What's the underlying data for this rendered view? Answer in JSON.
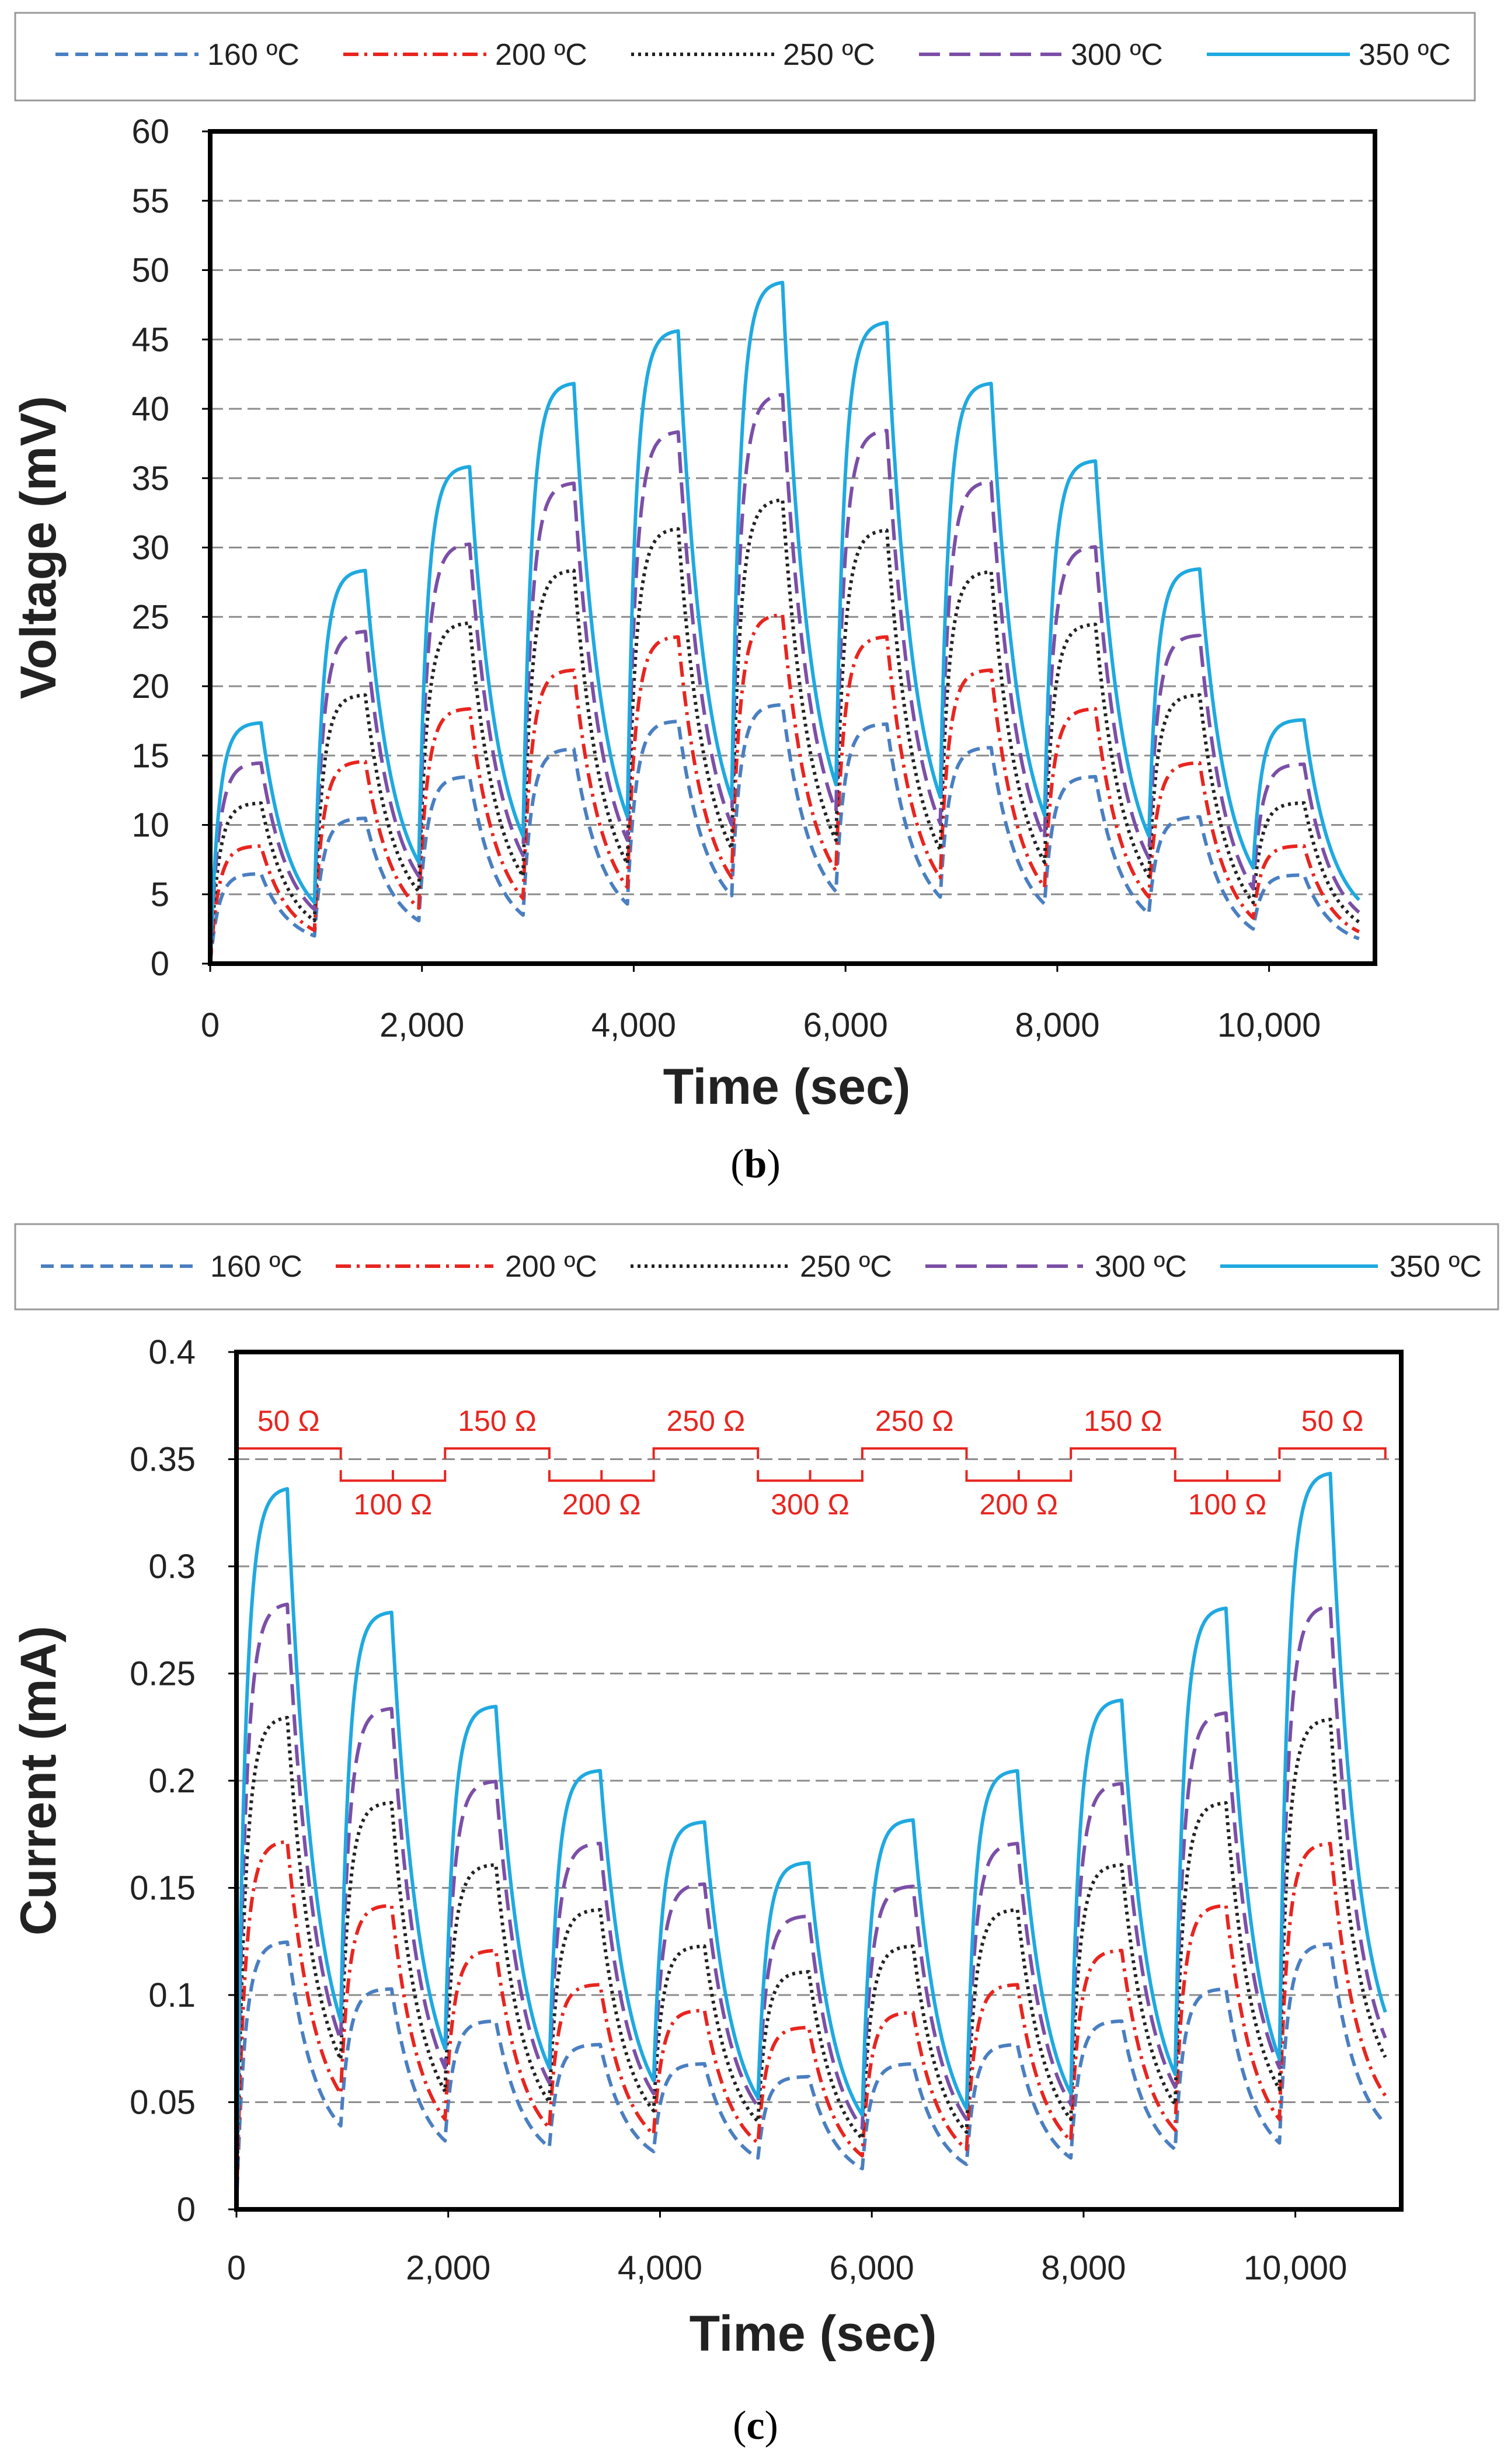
{
  "figure": {
    "panels": [
      {
        "label": "b",
        "caption_open": "(",
        "caption_close": ")"
      },
      {
        "label": "c",
        "caption_open": "(",
        "caption_close": ")"
      }
    ]
  },
  "chart_data": [
    {
      "type": "line",
      "panel": "b",
      "title": "",
      "xlabel": "Time (sec)",
      "ylabel": "Voltage (mV)",
      "xlim": [
        0,
        11000
      ],
      "ylim": [
        0,
        60
      ],
      "xticks": [
        0,
        2000,
        4000,
        6000,
        8000,
        10000
      ],
      "xtick_labels": [
        "0",
        "2,000",
        "4,000",
        "6,000",
        "8,000",
        "10,000"
      ],
      "yticks": [
        0,
        5,
        10,
        15,
        20,
        25,
        30,
        35,
        40,
        45,
        50,
        55,
        60
      ],
      "ytick_labels": [
        "0",
        "5",
        "10",
        "15",
        "20",
        "25",
        "30",
        "35",
        "40",
        "45",
        "50",
        "55",
        "60"
      ],
      "grid": true,
      "legend_position": "top",
      "segment_duration": 985,
      "segment_starts": [
        0,
        985,
        1970,
        2955,
        3940,
        4925,
        5910,
        6895,
        7880,
        8865,
        9850
      ],
      "end_time": 10850,
      "series": [
        {
          "name": "160 ºC",
          "color": "#4a7fc1",
          "dash": "dashed",
          "plateaus": [
            6.5,
            10.5,
            13.5,
            15.5,
            17.5,
            18.7,
            17.3,
            15.6,
            13.5,
            10.6,
            6.4
          ],
          "valleys": [
            2.0,
            3.1,
            3.5,
            4.3,
            4.9,
            5.2,
            4.8,
            4.3,
            3.6,
            2.5,
            1.8
          ]
        },
        {
          "name": "200 ºC",
          "color": "#e8251f",
          "dash": "dashdot",
          "plateaus": [
            8.5,
            14.6,
            18.4,
            21.2,
            23.6,
            25.2,
            23.6,
            21.2,
            18.4,
            14.5,
            8.5
          ],
          "valleys": [
            2.4,
            4.0,
            4.7,
            5.5,
            6.2,
            6.7,
            6.2,
            5.5,
            4.8,
            3.3,
            2.3
          ]
        },
        {
          "name": "250 ºC",
          "color": "#222222",
          "dash": "dotted",
          "plateaus": [
            11.6,
            19.4,
            24.6,
            28.4,
            31.4,
            33.5,
            31.3,
            28.3,
            24.5,
            19.4,
            11.6
          ],
          "valleys": [
            3.1,
            5.2,
            6.3,
            7.2,
            8.3,
            8.9,
            8.2,
            7.3,
            6.3,
            4.4,
            3.0
          ]
        },
        {
          "name": "300 ºC",
          "color": "#7b4fa6",
          "dash": "longdash",
          "plateaus": [
            14.5,
            24.0,
            30.3,
            34.7,
            38.4,
            41.1,
            38.5,
            34.8,
            30.1,
            23.7,
            14.4
          ],
          "valleys": [
            3.9,
            6.3,
            7.8,
            8.9,
            10.0,
            11.0,
            10.1,
            9.0,
            7.6,
            5.4,
            3.7
          ]
        },
        {
          "name": "350 ºC",
          "color": "#1fa9e0",
          "dash": "solid",
          "plateaus": [
            17.4,
            28.4,
            35.9,
            41.9,
            45.7,
            49.2,
            46.3,
            41.9,
            36.3,
            28.5,
            17.6
          ],
          "valleys": [
            4.4,
            7.3,
            9.2,
            10.6,
            11.9,
            12.9,
            12.0,
            10.7,
            9.2,
            6.9,
            4.6
          ]
        }
      ]
    },
    {
      "type": "line",
      "panel": "c",
      "title": "",
      "xlabel": "Time (sec)",
      "ylabel": "Current (mA)",
      "xlim": [
        0,
        11000
      ],
      "ylim": [
        0,
        0.4
      ],
      "xticks": [
        0,
        2000,
        4000,
        6000,
        8000,
        10000
      ],
      "xtick_labels": [
        "0",
        "2,000",
        "4,000",
        "6,000",
        "8,000",
        "10,000"
      ],
      "yticks": [
        0,
        0.05,
        0.1,
        0.15,
        0.2,
        0.25,
        0.3,
        0.35,
        0.4
      ],
      "ytick_labels": [
        "0",
        "0.05",
        "0.1",
        "0.15",
        "0.2",
        "0.25",
        "0.3",
        "0.35",
        "0.4"
      ],
      "grid": true,
      "legend_position": "top",
      "segment_duration": 985,
      "segment_starts": [
        0,
        985,
        1970,
        2955,
        3940,
        4925,
        5910,
        6895,
        7880,
        8865,
        9850
      ],
      "end_time": 10850,
      "annotations": {
        "color": "#e8251f",
        "top_row_value": 0.355,
        "bottom_row_value": 0.34,
        "labels": [
          "50 Ω",
          "100 Ω",
          "150 Ω",
          "200 Ω",
          "250 Ω",
          "300 Ω",
          "250 Ω",
          "200 Ω",
          "150 Ω",
          "100 Ω",
          "50 Ω"
        ]
      },
      "series": [
        {
          "name": "160 ºC",
          "color": "#4a7fc1",
          "dash": "dashed",
          "plateaus": [
            0.125,
            0.103,
            0.088,
            0.077,
            0.068,
            0.062,
            0.068,
            0.077,
            0.088,
            0.103,
            0.124
          ],
          "valleys": [
            0.039,
            0.032,
            0.029,
            0.027,
            0.024,
            0.019,
            0.021,
            0.024,
            0.028,
            0.031,
            0.04
          ]
        },
        {
          "name": "200 ºC",
          "color": "#e8251f",
          "dash": "dashdot",
          "plateaus": [
            0.172,
            0.142,
            0.121,
            0.105,
            0.093,
            0.085,
            0.092,
            0.105,
            0.121,
            0.142,
            0.171
          ],
          "valleys": [
            0.054,
            0.042,
            0.038,
            0.035,
            0.031,
            0.025,
            0.028,
            0.032,
            0.037,
            0.042,
            0.053
          ]
        },
        {
          "name": "250 ºC",
          "color": "#222222",
          "dash": "dotted",
          "plateaus": [
            0.23,
            0.19,
            0.161,
            0.14,
            0.123,
            0.111,
            0.123,
            0.14,
            0.161,
            0.19,
            0.229
          ],
          "valleys": [
            0.07,
            0.055,
            0.05,
            0.046,
            0.041,
            0.033,
            0.036,
            0.042,
            0.049,
            0.056,
            0.071
          ]
        },
        {
          "name": "300 ºC",
          "color": "#7b4fa6",
          "dash": "longdash",
          "plateaus": [
            0.283,
            0.234,
            0.2,
            0.171,
            0.152,
            0.137,
            0.151,
            0.171,
            0.199,
            0.232,
            0.282
          ],
          "valleys": [
            0.079,
            0.066,
            0.059,
            0.054,
            0.048,
            0.038,
            0.042,
            0.049,
            0.057,
            0.066,
            0.08
          ]
        },
        {
          "name": "350 ºC",
          "color": "#1fa9e0",
          "dash": "solid",
          "plateaus": [
            0.337,
            0.279,
            0.235,
            0.205,
            0.181,
            0.162,
            0.182,
            0.205,
            0.238,
            0.281,
            0.344
          ],
          "valleys": [
            0.088,
            0.075,
            0.066,
            0.06,
            0.052,
            0.044,
            0.047,
            0.054,
            0.063,
            0.07,
            0.092
          ]
        }
      ]
    }
  ]
}
